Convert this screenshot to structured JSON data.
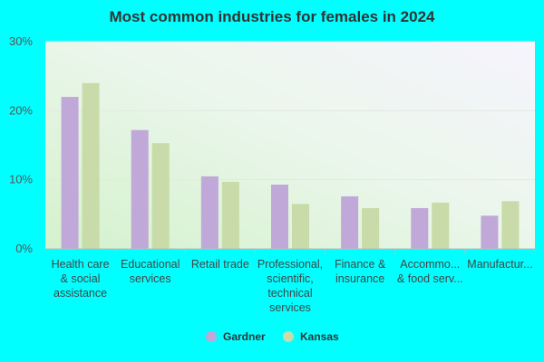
{
  "chart_data": {
    "type": "bar",
    "title": "Most common industries for females in 2024",
    "categories": [
      "Health care & social assistance",
      "Educational services",
      "Retail trade",
      "Professional, scientific, technical services",
      "Finance & insurance",
      "Accommodation & food services",
      "Manufacturing"
    ],
    "category_display": [
      [
        "Health care",
        "& social",
        "assistance"
      ],
      [
        "Educational",
        "services"
      ],
      [
        "Retail trade"
      ],
      [
        "Professional,",
        "scientific,",
        "technical",
        "services"
      ],
      [
        "Finance &",
        "insurance"
      ],
      [
        "Accommo...",
        "& food serv..."
      ],
      [
        "Manufactur..."
      ]
    ],
    "series": [
      {
        "name": "Gardner",
        "values": [
          22.0,
          17.2,
          10.5,
          9.3,
          7.6,
          5.9,
          4.8
        ],
        "color": "#c0a8d8"
      },
      {
        "name": "Kansas",
        "values": [
          24.0,
          15.3,
          9.7,
          6.5,
          5.9,
          6.7,
          6.9
        ],
        "color": "#c8dba8"
      }
    ],
    "yticks": [
      "0%",
      "10%",
      "20%",
      "30%"
    ],
    "ylim": [
      0,
      30
    ],
    "grid": true,
    "legend": "bottom-center",
    "xlabel": "",
    "ylabel": ""
  }
}
